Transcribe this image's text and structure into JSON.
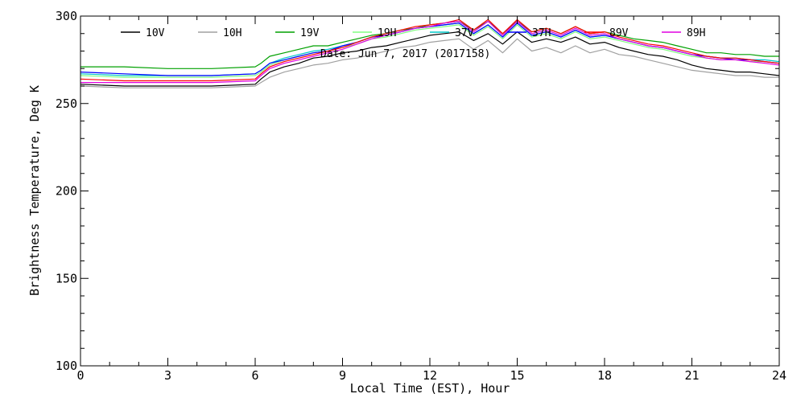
{
  "chart_data": {
    "type": "line",
    "subtitle": "Date: Jun  7, 2017 (2017158)",
    "xlabel": "Local Time (EST), Hour",
    "ylabel": "Brightness Temperature, Deg K",
    "xlim": [
      0,
      24
    ],
    "ylim": [
      100,
      300
    ],
    "xticks": [
      0,
      3,
      6,
      9,
      12,
      15,
      18,
      21,
      24
    ],
    "yticks": [
      100,
      150,
      200,
      250,
      300
    ],
    "grid": false,
    "legend_position": "top",
    "series": [
      {
        "name": "10V",
        "color": "#000000",
        "x": [
          0,
          1.5,
          3,
          4.5,
          6,
          6.2,
          6.5,
          7,
          7.5,
          8,
          8.5,
          9,
          9.5,
          10,
          10.5,
          11,
          11.5,
          12,
          12.5,
          13,
          13.5,
          14,
          14.5,
          15,
          15.5,
          16,
          16.5,
          17,
          17.5,
          18,
          18.5,
          19,
          19.5,
          20,
          20.5,
          21,
          21.5,
          22,
          22.5,
          23,
          23.5,
          24
        ],
        "y": [
          261,
          260,
          260,
          260,
          261,
          264,
          268,
          271,
          273,
          276,
          277,
          279,
          280,
          282,
          283,
          285,
          287,
          289,
          290,
          291,
          286,
          290,
          284,
          291,
          285,
          287,
          285,
          288,
          284,
          285,
          282,
          280,
          278,
          277,
          275,
          272,
          270,
          269,
          268,
          268,
          267,
          266
        ]
      },
      {
        "name": "10H",
        "color": "#a0a0a0",
        "x": [
          0,
          1.5,
          3,
          4.5,
          6,
          6.2,
          6.5,
          7,
          7.5,
          8,
          8.5,
          9,
          9.5,
          10,
          10.5,
          11,
          11.5,
          12,
          12.5,
          13,
          13.5,
          14,
          14.5,
          15,
          15.5,
          16,
          16.5,
          17,
          17.5,
          18,
          18.5,
          19,
          19.5,
          20,
          20.5,
          21,
          21.5,
          22,
          22.5,
          23,
          23.5,
          24
        ],
        "y": [
          260,
          259,
          259,
          259,
          260,
          262,
          265,
          268,
          270,
          272,
          273,
          275,
          276,
          278,
          280,
          282,
          283,
          285,
          286,
          287,
          281,
          286,
          279,
          287,
          280,
          282,
          279,
          283,
          279,
          281,
          278,
          277,
          275,
          273,
          271,
          269,
          268,
          267,
          266,
          266,
          265,
          265
        ]
      },
      {
        "name": "19V",
        "color": "#00a000",
        "x": [
          0,
          1.5,
          3,
          4.5,
          6,
          6.2,
          6.5,
          7,
          7.5,
          8,
          8.5,
          9,
          9.5,
          10,
          10.5,
          11,
          11.5,
          12,
          12.5,
          13,
          13.5,
          14,
          14.5,
          15,
          15.5,
          16,
          16.5,
          17,
          17.5,
          18,
          18.5,
          19,
          19.5,
          20,
          20.5,
          21,
          21.5,
          22,
          22.5,
          23,
          23.5,
          24
        ],
        "y": [
          271,
          271,
          270,
          270,
          271,
          273,
          277,
          279,
          281,
          283,
          283,
          285,
          287,
          289,
          290,
          292,
          293,
          295,
          296,
          297,
          292,
          297,
          290,
          297,
          291,
          293,
          290,
          294,
          290,
          291,
          289,
          287,
          286,
          285,
          283,
          281,
          279,
          279,
          278,
          278,
          277,
          277
        ]
      },
      {
        "name": "19H",
        "color": "#80ff80",
        "x": [
          0,
          1.5,
          3,
          4.5,
          6,
          6.2,
          6.5,
          7,
          7.5,
          8,
          8.5,
          9,
          9.5,
          10,
          10.5,
          11,
          11.5,
          12,
          12.5,
          13,
          13.5,
          14,
          14.5,
          15,
          15.5,
          16,
          16.5,
          17,
          17.5,
          18,
          18.5,
          19,
          19.5,
          20,
          20.5,
          21,
          21.5,
          22,
          22.5,
          23,
          23.5,
          24
        ],
        "y": [
          266,
          265,
          265,
          265,
          266,
          268,
          272,
          275,
          277,
          279,
          280,
          282,
          284,
          287,
          288,
          290,
          292,
          293,
          294,
          295,
          289,
          294,
          287,
          295,
          288,
          290,
          287,
          291,
          287,
          288,
          286,
          284,
          282,
          281,
          279,
          277,
          276,
          275,
          275,
          274,
          274,
          273
        ]
      },
      {
        "name": "37V",
        "color": "#00c8c8",
        "x": [
          0,
          1.5,
          3,
          4.5,
          6,
          6.2,
          6.5,
          7,
          7.5,
          8,
          8.5,
          9,
          9.5,
          10,
          10.5,
          11,
          11.5,
          12,
          12.5,
          13,
          13.5,
          14,
          14.5,
          15,
          15.5,
          16,
          16.5,
          17,
          17.5,
          18,
          18.5,
          19,
          19.5,
          20,
          20.5,
          21,
          21.5,
          22,
          22.5,
          23,
          23.5,
          24
        ],
        "y": [
          267,
          266,
          266,
          266,
          267,
          269,
          273,
          276,
          278,
          280,
          281,
          283,
          285,
          288,
          289,
          291,
          293,
          294,
          295,
          296,
          290,
          295,
          288,
          296,
          289,
          291,
          288,
          292,
          288,
          289,
          287,
          285,
          283,
          282,
          280,
          278,
          277,
          276,
          276,
          275,
          275,
          274
        ]
      },
      {
        "name": "37H",
        "color": "#0000ff",
        "x": [
          0,
          1.5,
          3,
          4.5,
          6,
          6.2,
          6.5,
          7,
          7.5,
          8,
          8.5,
          9,
          9.5,
          10,
          10.5,
          11,
          11.5,
          12,
          12.5,
          13,
          13.5,
          14,
          14.5,
          15,
          15.5,
          16,
          16.5,
          17,
          17.5,
          18,
          18.5,
          19,
          19.5,
          20,
          20.5,
          21,
          21.5,
          22,
          22.5,
          23,
          23.5,
          24
        ],
        "y": [
          268,
          267,
          266,
          266,
          267,
          269,
          273,
          275,
          277,
          279,
          280,
          283,
          285,
          288,
          289,
          291,
          293,
          294,
          295,
          296,
          290,
          295,
          288,
          296,
          289,
          291,
          288,
          292,
          288,
          289,
          287,
          285,
          283,
          282,
          280,
          278,
          277,
          276,
          275,
          275,
          274,
          273
        ]
      },
      {
        "name": "89V",
        "color": "#ff0000",
        "x": [
          0,
          1.5,
          3,
          4.5,
          6,
          6.2,
          6.5,
          7,
          7.5,
          8,
          8.5,
          9,
          9.5,
          10,
          10.5,
          11,
          11.5,
          12,
          12.5,
          13,
          13.5,
          14,
          14.5,
          15,
          15.5,
          16,
          16.5,
          17,
          17.5,
          18,
          18.5,
          19,
          19.5,
          20,
          20.5,
          21,
          21.5,
          22,
          22.5,
          23,
          23.5,
          24
        ],
        "y": [
          264,
          263,
          263,
          263,
          264,
          267,
          271,
          274,
          276,
          278,
          280,
          282,
          285,
          288,
          290,
          292,
          294,
          295,
          296,
          298,
          292,
          298,
          290,
          298,
          291,
          293,
          290,
          294,
          290,
          291,
          288,
          286,
          284,
          283,
          281,
          279,
          277,
          276,
          276,
          275,
          274,
          273
        ]
      },
      {
        "name": "89H",
        "color": "#e000e0",
        "x": [
          0,
          1.5,
          3,
          4.5,
          6,
          6.2,
          6.5,
          7,
          7.5,
          8,
          8.5,
          9,
          9.5,
          10,
          10.5,
          11,
          11.5,
          12,
          12.5,
          13,
          13.5,
          14,
          14.5,
          15,
          15.5,
          16,
          16.5,
          17,
          17.5,
          18,
          18.5,
          19,
          19.5,
          20,
          20.5,
          21,
          21.5,
          22,
          22.5,
          23,
          23.5,
          24
        ],
        "y": [
          262,
          262,
          262,
          262,
          263,
          266,
          270,
          273,
          275,
          277,
          279,
          281,
          284,
          287,
          289,
          291,
          293,
          294,
          296,
          297,
          291,
          297,
          289,
          297,
          290,
          292,
          289,
          293,
          289,
          290,
          287,
          285,
          283,
          282,
          280,
          278,
          276,
          275,
          275,
          274,
          273,
          272
        ]
      }
    ]
  }
}
